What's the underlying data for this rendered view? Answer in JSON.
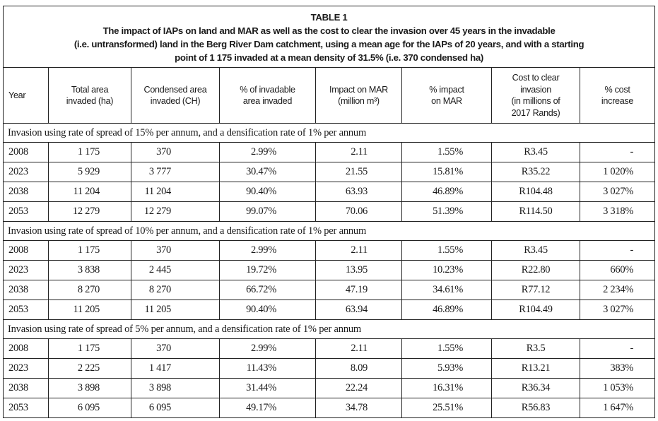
{
  "table": {
    "label": "TABLE 1",
    "caption": "The impact of IAPs on land and MAR as well as the cost to clear the invasion over 45 years in the invadable (i.e. untransformed) land in the Berg River Dam catchment, using a mean age for the IAPs of 20 years, and with a starting point of 1 175 invaded at a mean density of 31.5% (i.e. 370 condensed ha)",
    "caption_lines": [
      "The impact of IAPs on land and MAR as well as the cost to clear the invasion over 45 years in the invadable",
      "(i.e. untransformed) land in the Berg River Dam catchment, using a mean age for the IAPs of 20 years, and with a starting",
      "point of 1 175 invaded at a mean density of 31.5% (i.e. 370 condensed ha)"
    ],
    "columns": [
      [
        "Year"
      ],
      [
        "Total area",
        "invaded (ha)"
      ],
      [
        "Condensed area",
        "invaded (CH)"
      ],
      [
        "% of invadable",
        "area invaded"
      ],
      [
        "Impact on MAR",
        "(million m³)"
      ],
      [
        "% impact",
        "on MAR"
      ],
      [
        "Cost to clear",
        "invasion",
        "(in millions of",
        "2017 Rands)"
      ],
      [
        "% cost",
        "increase"
      ]
    ],
    "sections": [
      {
        "title": "Invasion using rate of spread of 15% per annum, and a densification rate of 1% per annum",
        "rows": [
          [
            "2008",
            "1 175",
            "370",
            "2.99%",
            "2.11",
            "1.55%",
            "R3.45",
            "-"
          ],
          [
            "2023",
            "5 929",
            "3 777",
            "30.47%",
            "21.55",
            "15.81%",
            "R35.22",
            "1 020%"
          ],
          [
            "2038",
            "11 204",
            "11 204",
            "90.40%",
            "63.93",
            "46.89%",
            "R104.48",
            "3 027%"
          ],
          [
            "2053",
            "12 279",
            "12 279",
            "99.07%",
            "70.06",
            "51.39%",
            "R114.50",
            "3 318%"
          ]
        ]
      },
      {
        "title": "Invasion using rate of spread of 10% per annum, and a densification rate of 1% per annum",
        "rows": [
          [
            "2008",
            "1 175",
            "370",
            "2.99%",
            "2.11",
            "1.55%",
            "R3.45",
            "-"
          ],
          [
            "2023",
            "3 838",
            "2 445",
            "19.72%",
            "13.95",
            "10.23%",
            "R22.80",
            "660%"
          ],
          [
            "2038",
            "8 270",
            "8 270",
            "66.72%",
            "47.19",
            "34.61%",
            "R77.12",
            "2 234%"
          ],
          [
            "2053",
            "11 205",
            "11 205",
            "90.40%",
            "63.94",
            "46.89%",
            "R104.49",
            "3 027%"
          ]
        ]
      },
      {
        "title": "Invasion using rate of spread of 5% per annum, and a densification rate of 1% per annum",
        "rows": [
          [
            "2008",
            "1 175",
            "370",
            "2.99%",
            "2.11",
            "1.55%",
            "R3.5",
            "-"
          ],
          [
            "2023",
            "2 225",
            "1 417",
            "11.43%",
            "8.09",
            "5.93%",
            "R13.21",
            "383%"
          ],
          [
            "2038",
            "3 898",
            "3 898",
            "31.44%",
            "22.24",
            "16.31%",
            "R36.34",
            "1 053%"
          ],
          [
            "2053",
            "6 095",
            "6 095",
            "49.17%",
            "34.78",
            "25.51%",
            "R56.83",
            "1 647%"
          ]
        ]
      }
    ]
  }
}
